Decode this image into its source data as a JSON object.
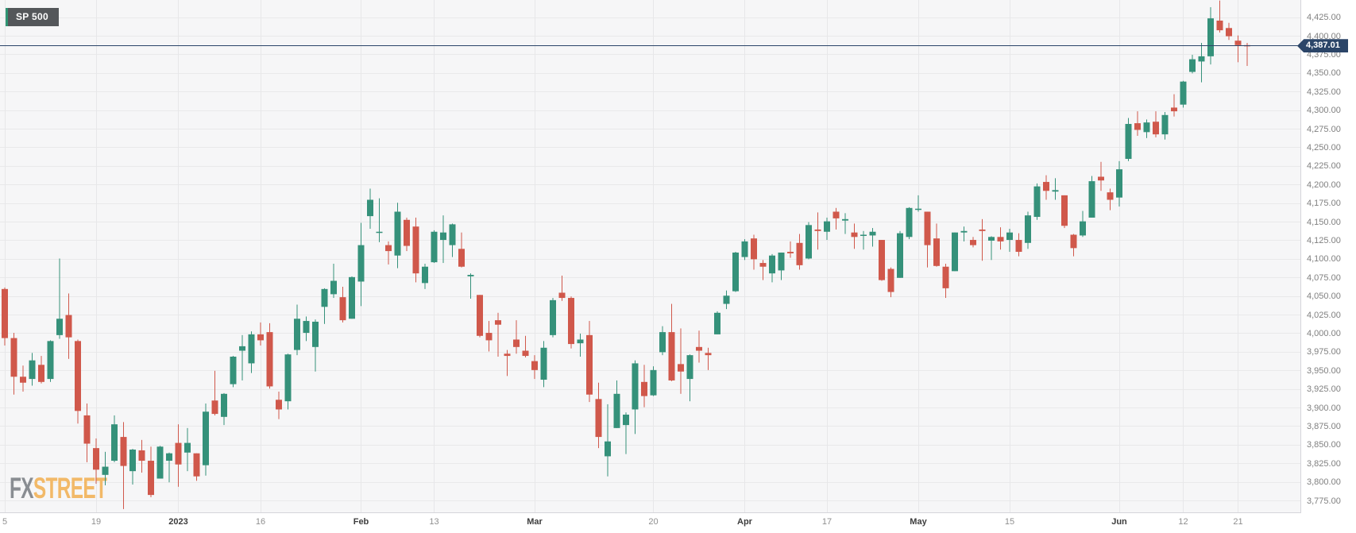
{
  "symbol_badge": {
    "label": "SP 500"
  },
  "watermark": {
    "part1": "FX",
    "part2": "STREET"
  },
  "last_price": {
    "value": 4387.01,
    "label": "4,387.01"
  },
  "colors": {
    "up": "#35917a",
    "down": "#d0584b",
    "price_line": "#2b4568",
    "badge_bg": "#2b4568",
    "symbol_bg": "#54575a",
    "grid": "#e9e9ea",
    "plot_bg": "#f6f6f7",
    "axis_border": "#d5d5da",
    "y_label": "#808080",
    "x_label": "#8f8f8f",
    "x_label_bold": "#3d3d3d"
  },
  "chart_data": {
    "type": "candlestick",
    "title": "SP 500",
    "xlabel": "",
    "ylabel": "",
    "grid": true,
    "legend_position": "none",
    "ylim": [
      3759.6,
      4448.7
    ],
    "y_ticks": [
      4425,
      4400,
      4375,
      4350,
      4325,
      4300,
      4275,
      4250,
      4225,
      4200,
      4175,
      4150,
      4125,
      4100,
      4075,
      4050,
      4025,
      4000,
      3975,
      3950,
      3925,
      3900,
      3875,
      3850,
      3825,
      3800,
      3775
    ],
    "x_ticks": [
      {
        "i": 0,
        "label": "5",
        "bold": false
      },
      {
        "i": 10,
        "label": "19",
        "bold": false
      },
      {
        "i": 19,
        "label": "2023",
        "bold": true
      },
      {
        "i": 28,
        "label": "16",
        "bold": false
      },
      {
        "i": 39,
        "label": "Feb",
        "bold": true
      },
      {
        "i": 47,
        "label": "13",
        "bold": false
      },
      {
        "i": 58,
        "label": "Mar",
        "bold": true
      },
      {
        "i": 71,
        "label": "20",
        "bold": false
      },
      {
        "i": 81,
        "label": "Apr",
        "bold": true
      },
      {
        "i": 90,
        "label": "17",
        "bold": false
      },
      {
        "i": 100,
        "label": "May",
        "bold": true
      },
      {
        "i": 110,
        "label": "15",
        "bold": false
      },
      {
        "i": 122,
        "label": "Jun",
        "bold": true
      },
      {
        "i": 129,
        "label": "12",
        "bold": false
      },
      {
        "i": 135,
        "label": "21",
        "bold": false
      }
    ],
    "candles": [
      [
        4060,
        4062,
        3984,
        3994
      ],
      [
        3994,
        4001,
        3918,
        3942
      ],
      [
        3942,
        3957,
        3922,
        3934
      ],
      [
        3939,
        3974,
        3930,
        3964
      ],
      [
        3958,
        3970,
        3933,
        3935
      ],
      [
        3939,
        3991,
        3935,
        3990
      ],
      [
        3998,
        4101,
        3993,
        4020
      ],
      [
        4025,
        4054,
        3966,
        3995
      ],
      [
        3990,
        3992,
        3879,
        3896
      ],
      [
        3890,
        3906,
        3827,
        3852
      ],
      [
        3846,
        3859,
        3798,
        3817
      ],
      [
        3810,
        3841,
        3796,
        3821
      ],
      [
        3829,
        3890,
        3827,
        3878
      ],
      [
        3861,
        3881,
        3764,
        3822
      ],
      [
        3815,
        3845,
        3797,
        3844
      ],
      [
        3843,
        3857,
        3813,
        3829
      ],
      [
        3829,
        3848,
        3780,
        3783
      ],
      [
        3805,
        3849,
        3805,
        3848
      ],
      [
        3829,
        3840,
        3800,
        3839
      ],
      [
        3853,
        3878,
        3794,
        3824
      ],
      [
        3840,
        3873,
        3815,
        3853
      ],
      [
        3839,
        3839,
        3802,
        3808
      ],
      [
        3823,
        3906,
        3809,
        3895
      ],
      [
        3910,
        3950,
        3890,
        3892
      ],
      [
        3888,
        3920,
        3877,
        3919
      ],
      [
        3932,
        3970,
        3928,
        3969
      ],
      [
        3977,
        3998,
        3937,
        3983
      ],
      [
        3960,
        4003,
        3947,
        3999
      ],
      [
        3999,
        4015,
        3984,
        3991
      ],
      [
        4002,
        4014,
        3926,
        3929
      ],
      [
        3911,
        3922,
        3885,
        3898
      ],
      [
        3909,
        3973,
        3898,
        3972
      ],
      [
        3978,
        4039,
        3971,
        4020
      ],
      [
        4001,
        4023,
        3990,
        4017
      ],
      [
        3982,
        4019,
        3949,
        4016
      ],
      [
        4036,
        4061,
        4013,
        4060
      ],
      [
        4053,
        4094,
        4048,
        4071
      ],
      [
        4049,
        4063,
        4015,
        4018
      ],
      [
        4020,
        4077,
        4020,
        4076
      ],
      [
        4070,
        4149,
        4037,
        4119
      ],
      [
        4158,
        4195,
        4141,
        4180
      ],
      [
        4136,
        4182,
        4123,
        4137
      ],
      [
        4119,
        4124,
        4093,
        4111
      ],
      [
        4105,
        4176,
        4088,
        4164
      ],
      [
        4153,
        4156,
        4111,
        4118
      ],
      [
        4144,
        4156,
        4069,
        4081
      ],
      [
        4068,
        4094,
        4060,
        4090
      ],
      [
        4096,
        4139,
        4095,
        4137
      ],
      [
        4126,
        4159,
        4095,
        4136
      ],
      [
        4119,
        4148,
        4103,
        4147
      ],
      [
        4114,
        4136,
        4089,
        4090
      ],
      [
        4077,
        4081,
        4047,
        4079
      ],
      [
        4052,
        4052,
        3995,
        3997
      ],
      [
        4001,
        4017,
        3976,
        3991
      ],
      [
        4018,
        4028,
        3969,
        4012
      ],
      [
        3973,
        3978,
        3943,
        3970
      ],
      [
        3992,
        4018,
        3973,
        3982
      ],
      [
        3977,
        3997,
        3968,
        3970
      ],
      [
        3963,
        3971,
        3939,
        3951
      ],
      [
        3938,
        3990,
        3928,
        3981
      ],
      [
        3998,
        4048,
        3995,
        4045
      ],
      [
        4055,
        4078,
        4044,
        4048
      ],
      [
        4048,
        4050,
        3980,
        3986
      ],
      [
        3987,
        4000,
        3969,
        3992
      ],
      [
        3998,
        4017,
        3908,
        3918
      ],
      [
        3912,
        3934,
        3846,
        3861
      ],
      [
        3835,
        3905,
        3808,
        3855
      ],
      [
        3873,
        3937,
        3873,
        3919
      ],
      [
        3877,
        3894,
        3838,
        3891
      ],
      [
        3898,
        3964,
        3865,
        3960
      ],
      [
        3935,
        3958,
        3901,
        3916
      ],
      [
        3917,
        3956,
        3916,
        3951
      ],
      [
        3975,
        4010,
        3971,
        4002
      ],
      [
        4002,
        4040,
        3936,
        3937
      ],
      [
        3959,
        4007,
        3919,
        3949
      ],
      [
        3939,
        3972,
        3909,
        3971
      ],
      [
        3982,
        4004,
        3961,
        3977
      ],
      [
        3974,
        3981,
        3951,
        3971
      ],
      [
        3999,
        4030,
        3999,
        4028
      ],
      [
        4040,
        4058,
        4033,
        4051
      ],
      [
        4057,
        4110,
        4056,
        4109
      ],
      [
        4103,
        4127,
        4099,
        4124
      ],
      [
        4128,
        4133,
        4086,
        4100
      ],
      [
        4095,
        4099,
        4072,
        4090
      ],
      [
        4081,
        4107,
        4069,
        4105
      ],
      [
        4085,
        4109,
        4072,
        4109
      ],
      [
        4110,
        4124,
        4102,
        4108
      ],
      [
        4122,
        4134,
        4086,
        4092
      ],
      [
        4101,
        4150,
        4100,
        4146
      ],
      [
        4140,
        4163,
        4113,
        4138
      ],
      [
        4137,
        4156,
        4126,
        4151
      ],
      [
        4164,
        4169,
        4140,
        4155
      ],
      [
        4152,
        4162,
        4134,
        4154
      ],
      [
        4136,
        4148,
        4114,
        4130
      ],
      [
        4132,
        4138,
        4113,
        4133
      ],
      [
        4132,
        4142,
        4117,
        4137
      ],
      [
        4126,
        4126,
        4071,
        4072
      ],
      [
        4087,
        4089,
        4049,
        4056
      ],
      [
        4075,
        4138,
        4075,
        4135
      ],
      [
        4130,
        4170,
        4127,
        4169
      ],
      [
        4167,
        4186,
        4164,
        4168
      ],
      [
        4164,
        4164,
        4089,
        4119
      ],
      [
        4128,
        4148,
        4090,
        4091
      ],
      [
        4090,
        4094,
        4048,
        4061
      ],
      [
        4084,
        4136,
        4084,
        4136
      ],
      [
        4136,
        4144,
        4124,
        4138
      ],
      [
        4126,
        4130,
        4116,
        4119
      ],
      [
        4140,
        4154,
        4098,
        4138
      ],
      [
        4125,
        4131,
        4099,
        4130
      ],
      [
        4130,
        4143,
        4113,
        4124
      ],
      [
        4126,
        4141,
        4110,
        4136
      ],
      [
        4126,
        4135,
        4104,
        4110
      ],
      [
        4122,
        4164,
        4114,
        4159
      ],
      [
        4157,
        4202,
        4153,
        4198
      ],
      [
        4204,
        4213,
        4180,
        4192
      ],
      [
        4191,
        4209,
        4180,
        4193
      ],
      [
        4186,
        4186,
        4142,
        4145
      ],
      [
        4133,
        4134,
        4104,
        4115
      ],
      [
        4132,
        4165,
        4130,
        4151
      ],
      [
        4156,
        4212,
        4156,
        4205
      ],
      [
        4211,
        4231,
        4192,
        4206
      ],
      [
        4190,
        4195,
        4166,
        4180
      ],
      [
        4183,
        4232,
        4171,
        4221
      ],
      [
        4235,
        4290,
        4232,
        4282
      ],
      [
        4283,
        4299,
        4266,
        4274
      ],
      [
        4271,
        4288,
        4263,
        4284
      ],
      [
        4285,
        4299,
        4264,
        4268
      ],
      [
        4268,
        4298,
        4261,
        4294
      ],
      [
        4304,
        4322,
        4292,
        4299
      ],
      [
        4308,
        4340,
        4304,
        4339
      ],
      [
        4352,
        4375,
        4350,
        4369
      ],
      [
        4366,
        4391,
        4338,
        4373
      ],
      [
        4373,
        4439,
        4362,
        4424
      ],
      [
        4421,
        4448,
        4405,
        4408
      ],
      [
        4411,
        4418,
        4395,
        4400
      ],
      [
        4394,
        4401,
        4365,
        4388
      ],
      [
        4388,
        4391,
        4360,
        4387.01
      ]
    ]
  }
}
